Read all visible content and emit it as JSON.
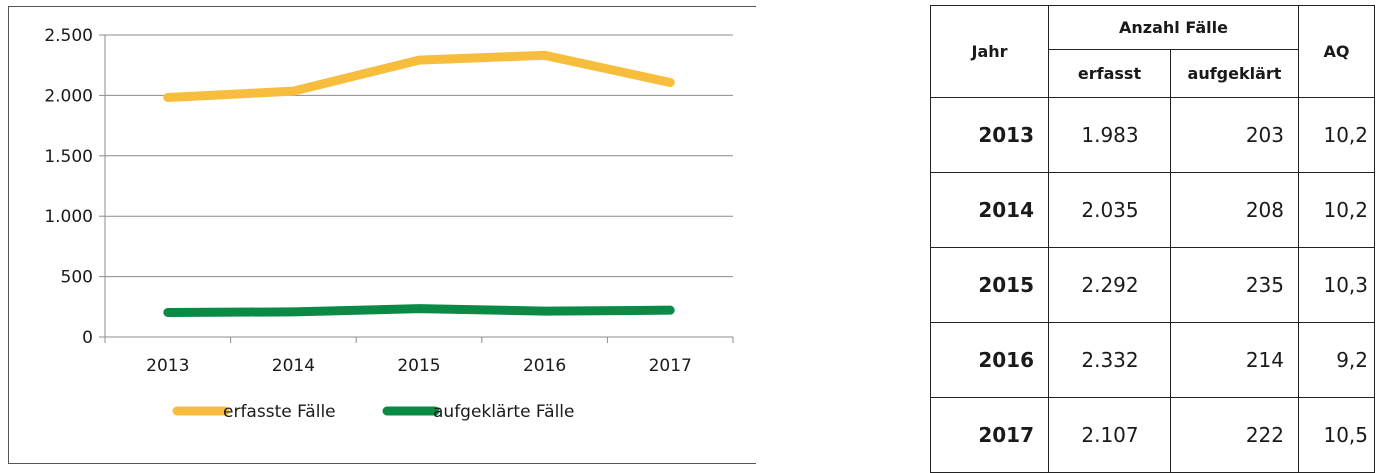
{
  "chart_data": {
    "type": "line",
    "categories": [
      "2013",
      "2014",
      "2015",
      "2016",
      "2017"
    ],
    "series": [
      {
        "name": "erfasste Fälle",
        "values": [
          1983,
          2035,
          2292,
          2332,
          2107
        ],
        "color": "#f7be3e"
      },
      {
        "name": "aufgeklärte Fälle",
        "values": [
          203,
          208,
          235,
          214,
          222
        ],
        "color": "#0a8a45"
      }
    ],
    "ylim": [
      0,
      2500
    ],
    "yticks": [
      0,
      500,
      1000,
      1500,
      2000,
      2500
    ],
    "ytick_labels": [
      "0",
      "500",
      "1.000",
      "1.500",
      "2.000",
      "2.500"
    ],
    "grid": true,
    "legend_position": "bottom"
  },
  "table": {
    "header": {
      "jahr": "Jahr",
      "anzahl": "Anzahl Fälle",
      "erfasst": "erfasst",
      "aufgeklaert": "aufgeklärt",
      "aq": "AQ"
    },
    "rows": [
      {
        "jahr": "2013",
        "erfasst": "1.983",
        "aufgeklaert": "203",
        "aq": "10,2"
      },
      {
        "jahr": "2014",
        "erfasst": "2.035",
        "aufgeklaert": "208",
        "aq": "10,2"
      },
      {
        "jahr": "2015",
        "erfasst": "2.292",
        "aufgeklaert": "235",
        "aq": "10,3"
      },
      {
        "jahr": "2016",
        "erfasst": "2.332",
        "aufgeklaert": "214",
        "aq": "9,2"
      },
      {
        "jahr": "2017",
        "erfasst": "2.107",
        "aufgeklaert": "222",
        "aq": "10,5"
      }
    ]
  }
}
